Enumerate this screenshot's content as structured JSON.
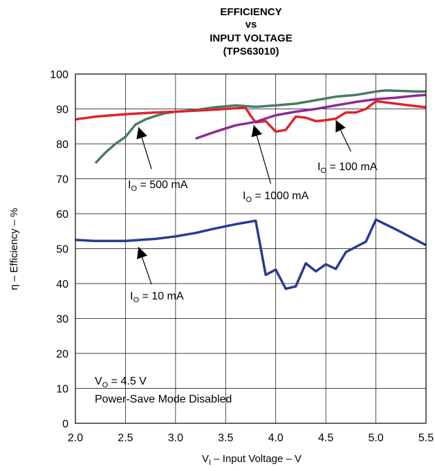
{
  "chart_data": {
    "type": "line",
    "title_lines": [
      "EFFICIENCY",
      "vs",
      "INPUT VOLTAGE",
      "(TPS63010)"
    ],
    "xlabel": {
      "prefix": "V",
      "sub": "I",
      "text": " – Input Voltage – V"
    },
    "ylabel": "η – Efficiency – %",
    "xlim": [
      2.0,
      5.5
    ],
    "ylim": [
      0,
      100
    ],
    "xticks": [
      "2.0",
      "2.5",
      "3.0",
      "3.5",
      "4.0",
      "4.5",
      "5.0",
      "5.5"
    ],
    "yticks": [
      "0",
      "10",
      "20",
      "30",
      "40",
      "50",
      "60",
      "70",
      "80",
      "90",
      "100"
    ],
    "grid": true,
    "series": [
      {
        "name": "I_O = 500 mA",
        "label": {
          "prefix": "I",
          "sub": "O",
          "text": " = 500 mA"
        },
        "color": "#4a7b5f",
        "x": [
          2.2,
          2.3,
          2.4,
          2.5,
          2.6,
          2.7,
          2.8,
          2.9,
          3.0,
          3.2,
          3.4,
          3.6,
          3.8,
          4.0,
          4.2,
          4.4,
          4.6,
          4.8,
          5.0,
          5.1,
          5.2,
          5.4,
          5.5
        ],
        "y": [
          74.5,
          77.5,
          80,
          82,
          85.5,
          87,
          88,
          88.8,
          89.2,
          89.7,
          90.5,
          91,
          90.6,
          91,
          91.5,
          92.5,
          93.5,
          94,
          95,
          95.3,
          95.2,
          95,
          95
        ]
      },
      {
        "name": "I_O = 100 mA",
        "label": {
          "prefix": "I",
          "sub": "O",
          "text": " = 100 mA"
        },
        "color": "#e0242b",
        "x": [
          2.0,
          2.2,
          2.5,
          2.8,
          3.0,
          3.2,
          3.4,
          3.6,
          3.7,
          3.75,
          3.8,
          3.9,
          4.0,
          4.1,
          4.2,
          4.3,
          4.4,
          4.5,
          4.6,
          4.7,
          4.8,
          4.9,
          5.0,
          5.2,
          5.4,
          5.5
        ],
        "y": [
          87,
          87.8,
          88.5,
          89,
          89.2,
          89.5,
          89.8,
          90.2,
          90.3,
          88,
          86.2,
          86.5,
          83.5,
          84,
          87.8,
          87.5,
          86.5,
          86.8,
          87.2,
          89,
          89,
          90,
          92.2,
          91.5,
          90.8,
          90.5
        ]
      },
      {
        "name": "I_O = 1000 mA",
        "label": {
          "prefix": "I",
          "sub": "O",
          "text": " = 1000 mA"
        },
        "color": "#8e2a96",
        "x": [
          3.2,
          3.4,
          3.6,
          3.8,
          4.0,
          4.2,
          4.4,
          4.6,
          4.8,
          5.0,
          5.2,
          5.4,
          5.5
        ],
        "y": [
          81.5,
          83.5,
          85.3,
          86.3,
          88.2,
          89.2,
          90,
          91,
          92,
          92.8,
          93.2,
          93.8,
          94
        ]
      },
      {
        "name": "I_O = 10 mA",
        "label": {
          "prefix": "I",
          "sub": "O",
          "text": " = 10 mA"
        },
        "color": "#2b3a94",
        "x": [
          2.0,
          2.2,
          2.5,
          2.8,
          3.0,
          3.2,
          3.4,
          3.6,
          3.8,
          3.9,
          4.0,
          4.1,
          4.2,
          4.3,
          4.4,
          4.5,
          4.6,
          4.7,
          4.9,
          5.0,
          5.2,
          5.5
        ],
        "y": [
          52.5,
          52.2,
          52.2,
          52.8,
          53.5,
          54.5,
          55.8,
          57,
          58,
          42.5,
          44,
          38.5,
          39.2,
          45.8,
          43.5,
          45.5,
          44.2,
          49,
          52,
          58.3,
          55.5,
          51
        ]
      }
    ],
    "annotations": [
      {
        "prefix": "V",
        "sub": "O",
        "text": " = 4.5 V"
      },
      {
        "text": "Power-Save Mode Disabled"
      }
    ]
  }
}
